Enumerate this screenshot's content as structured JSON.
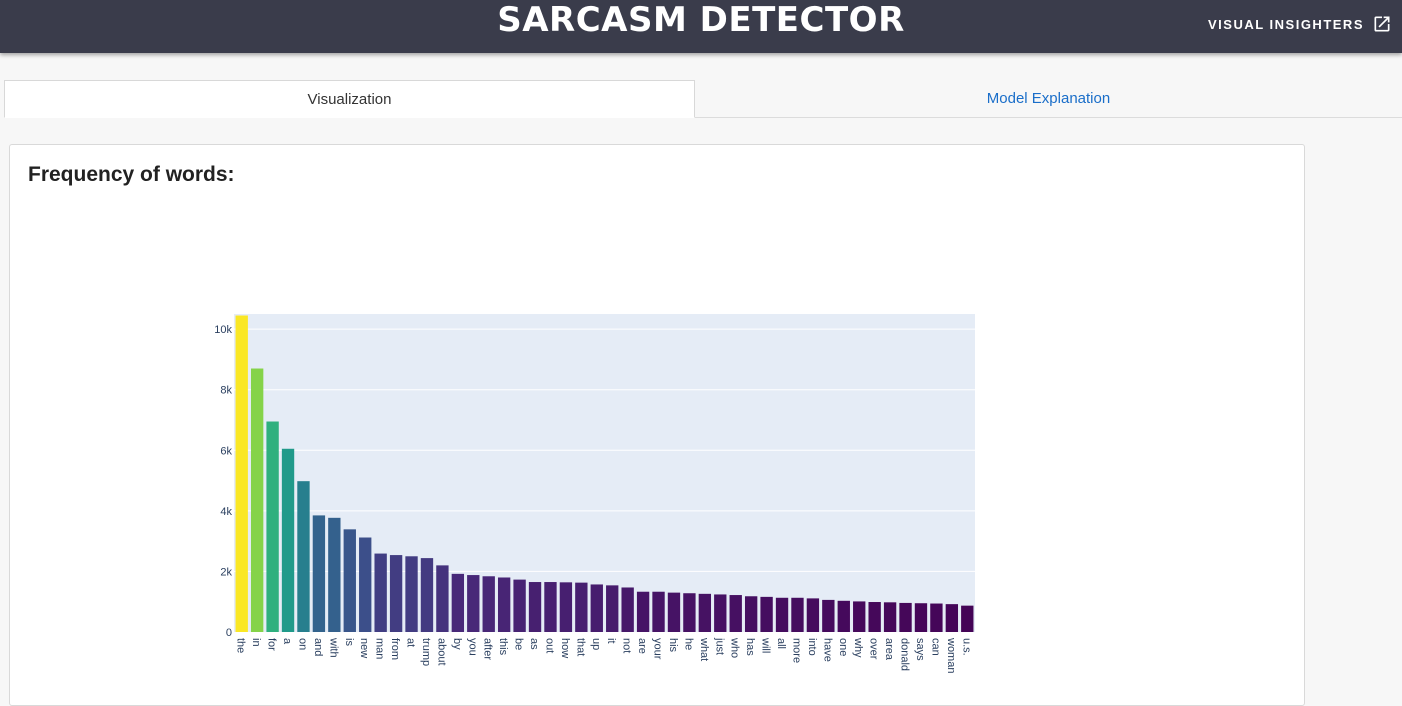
{
  "header": {
    "title": "SARCASM DETECTOR",
    "link_label": "VISUAL INSIGHTERS"
  },
  "tabs": [
    {
      "label": "Visualization",
      "active": true
    },
    {
      "label": "Model Explanation",
      "active": false
    }
  ],
  "card": {
    "title": "Frequency of words:"
  },
  "colors": {
    "header_bg": "#3a3c4b",
    "plot_bg": "#e5ecf6",
    "link": "#1a6ec9"
  },
  "chart_data": {
    "type": "bar",
    "ylim": [
      0,
      10500
    ],
    "yticks": [
      {
        "value": 0,
        "label": "0"
      },
      {
        "value": 2000,
        "label": "2k"
      },
      {
        "value": 4000,
        "label": "4k"
      },
      {
        "value": 6000,
        "label": "6k"
      },
      {
        "value": 8000,
        "label": "8k"
      },
      {
        "value": 10000,
        "label": "10k"
      }
    ],
    "grid": true,
    "colorscale": "viridis",
    "categories": [
      "the",
      "in",
      "for",
      "a",
      "on",
      "and",
      "with",
      "is",
      "new",
      "man",
      "from",
      "at",
      "trump",
      "about",
      "by",
      "you",
      "after",
      "this",
      "be",
      "as",
      "out",
      "how",
      "that",
      "up",
      "it",
      "not",
      "are",
      "your",
      "his",
      "he",
      "what",
      "just",
      "who",
      "has",
      "will",
      "all",
      "more",
      "into",
      "have",
      "one",
      "why",
      "over",
      "area",
      "donald",
      "says",
      "can",
      "woman",
      "u.s."
    ],
    "values": [
      10450,
      8700,
      6950,
      6050,
      4980,
      3850,
      3770,
      3390,
      3120,
      2590,
      2540,
      2500,
      2440,
      2200,
      1920,
      1880,
      1840,
      1800,
      1730,
      1650,
      1650,
      1640,
      1630,
      1570,
      1540,
      1470,
      1330,
      1330,
      1300,
      1280,
      1260,
      1240,
      1220,
      1180,
      1160,
      1130,
      1130,
      1110,
      1060,
      1030,
      1010,
      990,
      980,
      960,
      950,
      940,
      920,
      870
    ]
  }
}
